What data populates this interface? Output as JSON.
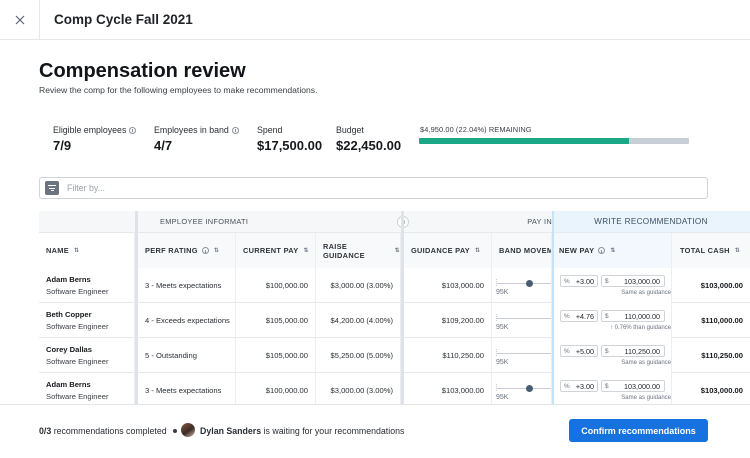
{
  "window": {
    "title": "Comp Cycle Fall 2021",
    "close_icon": "close-icon"
  },
  "header": {
    "title": "Compensation review",
    "subtitle": "Review the comp for the following employees to make recommendations."
  },
  "stats": {
    "eligible_label": "Eligible employees",
    "eligible_value": "7/9",
    "in_band_label": "Employees in band",
    "in_band_value": "4/7",
    "spend_label": "Spend",
    "spend_value": "$17,500.00",
    "budget_label": "Budget",
    "budget_value": "$22,450.00",
    "remaining_text": "$4,950.00 (22.04%) REMAINING",
    "spent_fraction": 0.7796,
    "colors": {
      "spent": "#1aa886",
      "remaining": "#c9ced6"
    }
  },
  "filter": {
    "placeholder": "Filter by...",
    "icon": "filter-icon"
  },
  "table": {
    "groups": {
      "employee": "EMPLOYEE INFORMATI",
      "pay": "PAY IN",
      "write": "WRITE RECOMMENDATION"
    },
    "columns": {
      "name": "NAME",
      "perf": "PERF RATING",
      "current_pay": "CURRENT PAY",
      "raise_guidance": "RAISE GUIDANCE",
      "guidance_pay": "GUIDANCE PAY",
      "band_movement": "BAND MOVEMEN",
      "new_pay": "NEW PAY",
      "total_cash": "TOTAL CASH"
    },
    "rows": [
      {
        "name": "Adam Berns",
        "title": "Software Engineer",
        "perf": "3 - Meets expectations",
        "current_pay": "$100,000.00",
        "raise_guidance": "$3,000.00 (3.00%)",
        "guidance_pay": "$103,000.00",
        "band_label": "95K",
        "pct_symbol": "%",
        "pct": "+3.00",
        "amt_symbol": "$",
        "amt": "103,000.00",
        "note": "Same as guidance",
        "total_cash": "$103,000.00"
      },
      {
        "name": "Beth Copper",
        "title": "Software Engineer",
        "perf": "4 - Exceeds expectations",
        "current_pay": "$105,000.00",
        "raise_guidance": "$4,200.00 (4.00%)",
        "guidance_pay": "$109,200.00",
        "band_label": "95K",
        "pct_symbol": "%",
        "pct": "+4.76",
        "amt_symbol": "$",
        "amt": "110,000.00",
        "note": "↑ 0.76% than guidance",
        "total_cash": "$110,000.00"
      },
      {
        "name": "Corey Dallas",
        "title": "Software Engineer",
        "perf": "5 - Outstanding",
        "current_pay": "$105,000.00",
        "raise_guidance": "$5,250.00 (5.00%)",
        "guidance_pay": "$110,250.00",
        "band_label": "95K",
        "pct_symbol": "%",
        "pct": "+5.00",
        "amt_symbol": "$",
        "amt": "110,250.00",
        "note": "Same as guidance",
        "total_cash": "$110,250.00"
      },
      {
        "name": "Adam Berns",
        "title": "Software Engineer",
        "perf": "3 - Meets expectations",
        "current_pay": "$100,000.00",
        "raise_guidance": "$3,000.00 (3.00%)",
        "guidance_pay": "$103,000.00",
        "band_label": "95K",
        "pct_symbol": "%",
        "pct": "+3.00",
        "amt_symbol": "$",
        "amt": "103,000.00",
        "note": "Same as guidance",
        "total_cash": "$103,000.00"
      }
    ]
  },
  "footer": {
    "completed_count": "0/3",
    "completed_text": "recommendations completed",
    "waiting_name": "Dylan Sanders",
    "waiting_text": "is waiting for your recommendations",
    "confirm_label": "Confirm recommendations",
    "accent": "#1672de"
  }
}
